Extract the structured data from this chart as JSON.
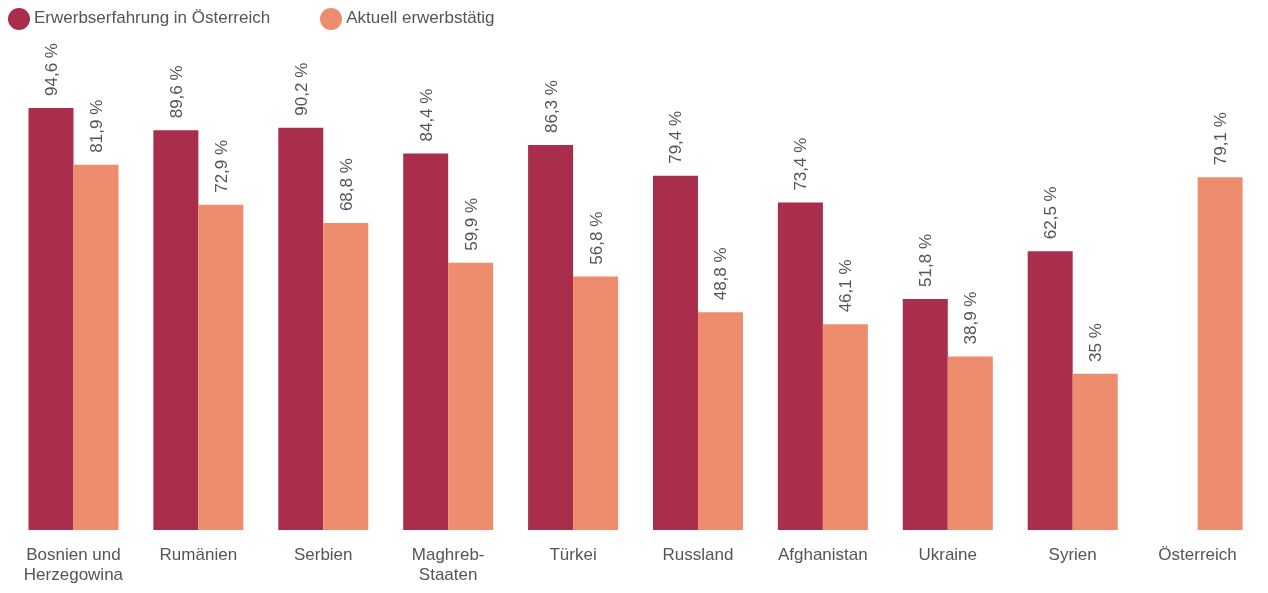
{
  "chart_data": {
    "type": "bar",
    "categories": [
      "Bosnien und Herzegowina",
      "Rumänien",
      "Serbien",
      "Maghreb-Staaten",
      "Türkei",
      "Russland",
      "Afghanistan",
      "Ukraine",
      "Syrien",
      "Österreich"
    ],
    "series": [
      {
        "name": "Erwerbserfahrung in Österreich",
        "color": "#a82e4b",
        "values": [
          94.6,
          89.6,
          90.2,
          84.4,
          86.3,
          79.4,
          73.4,
          51.8,
          62.5,
          null
        ],
        "value_labels": [
          "94,6 %",
          "89,6 %",
          "90,2 %",
          "84,4 %",
          "86,3 %",
          "79,4 %",
          "73,4 %",
          "51,8 %",
          "62,5 %",
          null
        ]
      },
      {
        "name": "Aktuell erwerbstätig",
        "color": "#ee8c6e",
        "values": [
          81.9,
          72.9,
          68.8,
          59.9,
          56.8,
          48.8,
          46.1,
          38.9,
          35,
          79.1
        ],
        "value_labels": [
          "81,9 %",
          "72,9 %",
          "68,8 %",
          "59,9 %",
          "56,8 %",
          "48,8 %",
          "46,1 %",
          "38,9 %",
          "35 %",
          "79,1 %"
        ]
      }
    ],
    "legend": "top left"
  }
}
